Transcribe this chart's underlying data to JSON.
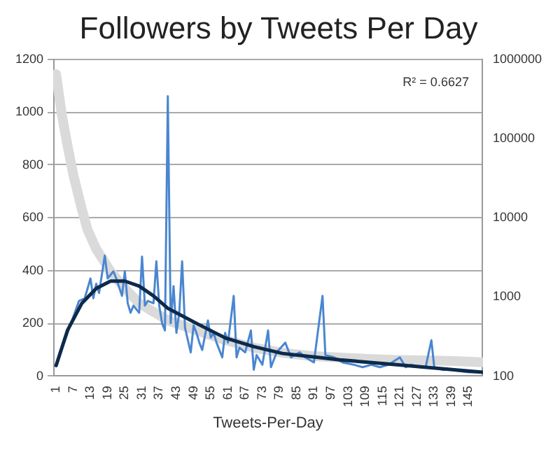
{
  "chart_data": {
    "type": "line",
    "title": "Followers by Tweets Per Day",
    "xlabel": "Tweets-Per-Day",
    "xlim": [
      0,
      150
    ],
    "xticks": [
      1,
      7,
      13,
      19,
      25,
      31,
      37,
      43,
      49,
      55,
      61,
      67,
      73,
      79,
      85,
      91,
      97,
      103,
      109,
      115,
      121,
      127,
      133,
      139,
      145
    ],
    "ylim": [
      0,
      1200
    ],
    "yticks": [
      0,
      200,
      400,
      600,
      800,
      1000,
      1200
    ],
    "y2lim": [
      100,
      1000000
    ],
    "y2ticks": [
      100,
      1000,
      10000,
      100000,
      1000000
    ],
    "log": "y2",
    "grid": "y",
    "legend": false,
    "marker": "none",
    "annotations": [
      "R² = 0.6627"
    ],
    "series": [
      {
        "axis": "y2",
        "color": "#dadada",
        "x": [
          1,
          3,
          5,
          7,
          10,
          12,
          15,
          20,
          25,
          30,
          40,
          50,
          60,
          70,
          80,
          90,
          100,
          110,
          120,
          130,
          140,
          150
        ],
        "values": [
          650000,
          200000,
          81000,
          35000,
          12700,
          7000,
          4030,
          2110,
          1280,
          832,
          506,
          378,
          285,
          229,
          197,
          180,
          172,
          165,
          160,
          158,
          155,
          150
        ]
      },
      {
        "color": "#4a86d0",
        "x": [
          1,
          5,
          9,
          11,
          13,
          14,
          15,
          16,
          18,
          19,
          21,
          22,
          24,
          25,
          26,
          27,
          28,
          30,
          31,
          32,
          33,
          35,
          36,
          37,
          38,
          39,
          40,
          41,
          42,
          43,
          44,
          45,
          46,
          48,
          49,
          50,
          51,
          52,
          54,
          55,
          56,
          57,
          59,
          60,
          61,
          63,
          64,
          65,
          67,
          69,
          70,
          71,
          73,
          74,
          75,
          76,
          78,
          81,
          83,
          86,
          88,
          91,
          94,
          95,
          98,
          101,
          105,
          108,
          111,
          114,
          117,
          121,
          123,
          125,
          128,
          130,
          132,
          133,
          136,
          139,
          142,
          145,
          148
        ],
        "values": [
          43,
          164,
          285,
          295,
          370,
          295,
          350,
          315,
          457,
          370,
          397,
          370,
          304,
          397,
          276,
          240,
          267,
          240,
          453,
          267,
          285,
          276,
          435,
          267,
          200,
          173,
          1060,
          200,
          341,
          164,
          240,
          435,
          183,
          90,
          192,
          164,
          127,
          99,
          211,
          146,
          164,
          127,
          71,
          164,
          127,
          304,
          71,
          108,
          90,
          173,
          24,
          80,
          43,
          108,
          173,
          34,
          90,
          127,
          71,
          90,
          71,
          52,
          304,
          80,
          71,
          52,
          43,
          34,
          43,
          34,
          43,
          71,
          34,
          43,
          34,
          34,
          136,
          34,
          24,
          24,
          19,
          15,
          15
        ]
      },
      {
        "color": "#0d2a4a",
        "x": [
          1,
          5,
          10,
          15,
          20,
          25,
          30,
          35,
          40,
          50,
          60,
          70,
          80,
          100,
          120,
          140,
          150
        ],
        "values": [
          40,
          174,
          276,
          332,
          360,
          360,
          341,
          304,
          257,
          200,
          145,
          112,
          86,
          62,
          43,
          24,
          15
        ]
      }
    ]
  }
}
